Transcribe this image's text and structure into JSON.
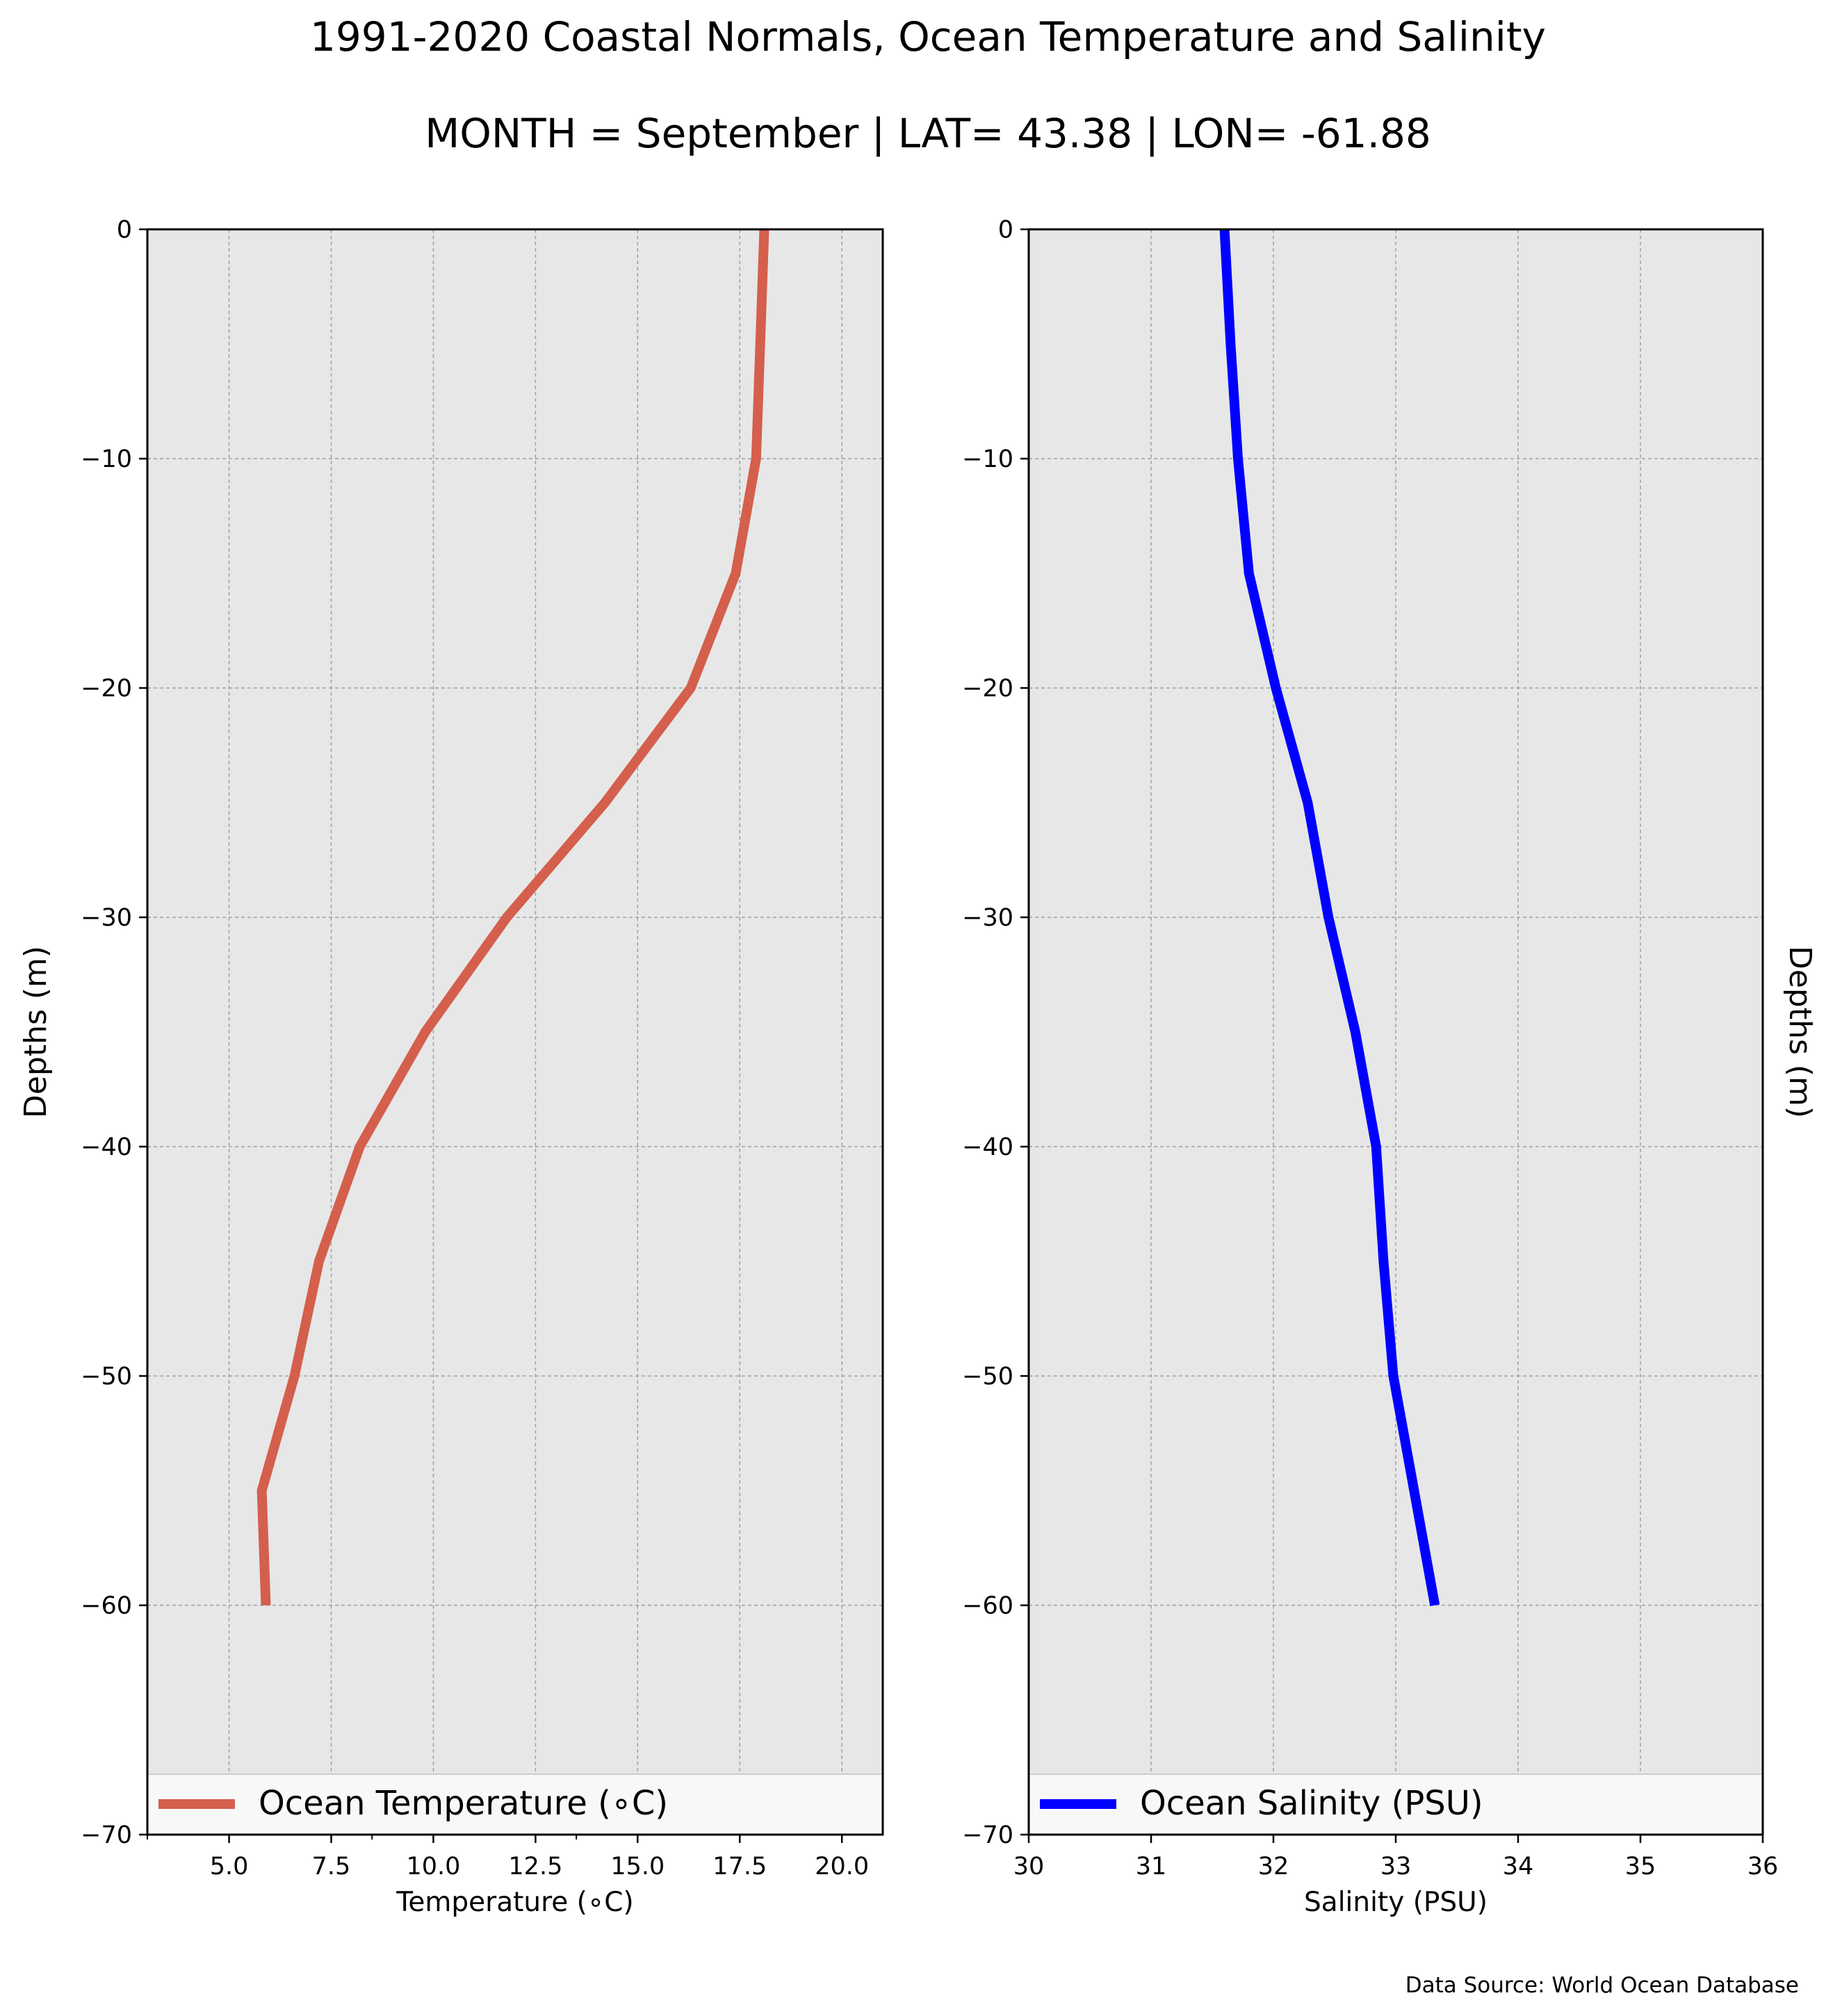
{
  "title": "1991-2020 Coastal Normals, Ocean Temperature and Salinity",
  "subtitle": "MONTH = September | LAT= 43.38 | LON= -61.88",
  "source_note": "Data Source: World Ocean Database",
  "chart_data": [
    {
      "type": "line",
      "xlabel": "Temperature ($^\\circ$C)",
      "xlabel_display": "Temperature (∘C)",
      "ylabel": "Depths (m)",
      "xlim": [
        3.0,
        21.0
      ],
      "ylim": [
        -70,
        0
      ],
      "xticks": [
        5.0,
        7.5,
        10.0,
        12.5,
        15.0,
        17.5,
        20.0
      ],
      "xtick_labels": [
        "5.0",
        "7.5",
        "10.0",
        "12.5",
        "15.0",
        "17.5",
        "20.0"
      ],
      "yticks": [
        0,
        -10,
        -20,
        -30,
        -40,
        -50,
        -60,
        -70
      ],
      "ytick_labels": [
        "0",
        "−10",
        "−20",
        "−30",
        "−40",
        "−50",
        "−60",
        "−70"
      ],
      "grid": true,
      "legend_placement": "lower center",
      "series": [
        {
          "name": "Ocean Temperature (∘C)",
          "color": "#d45f4c",
          "x": [
            18.1,
            18.0,
            17.9,
            17.4,
            16.3,
            14.2,
            11.8,
            9.8,
            8.2,
            7.2,
            6.6,
            5.8,
            5.9
          ],
          "y": [
            0,
            -5,
            -10,
            -15,
            -20,
            -25,
            -30,
            -35,
            -40,
            -45,
            -50,
            -55,
            -60
          ]
        }
      ]
    },
    {
      "type": "line",
      "xlabel": "Salinity (PSU)",
      "ylabel": "Depths (m)",
      "xlim": [
        30,
        36
      ],
      "ylim": [
        -70,
        0
      ],
      "xticks": [
        30,
        31,
        32,
        33,
        34,
        35,
        36
      ],
      "xtick_labels": [
        "30",
        "31",
        "32",
        "33",
        "34",
        "35",
        "36"
      ],
      "yticks": [
        0,
        -10,
        -20,
        -30,
        -40,
        -50,
        -60,
        -70
      ],
      "ytick_labels": [
        "0",
        "−10",
        "−20",
        "−30",
        "−40",
        "−50",
        "−60",
        "−70"
      ],
      "grid": true,
      "legend_placement": "lower center",
      "series": [
        {
          "name": "Ocean Salinity (PSU)",
          "color": "#0000ff",
          "x": [
            31.6,
            31.65,
            31.71,
            31.8,
            32.02,
            32.28,
            32.45,
            32.67,
            32.84,
            32.9,
            32.98,
            33.15,
            33.32
          ],
          "y": [
            0,
            -5,
            -10,
            -15,
            -20,
            -25,
            -30,
            -35,
            -40,
            -45,
            -50,
            -55,
            -60
          ]
        }
      ]
    }
  ]
}
